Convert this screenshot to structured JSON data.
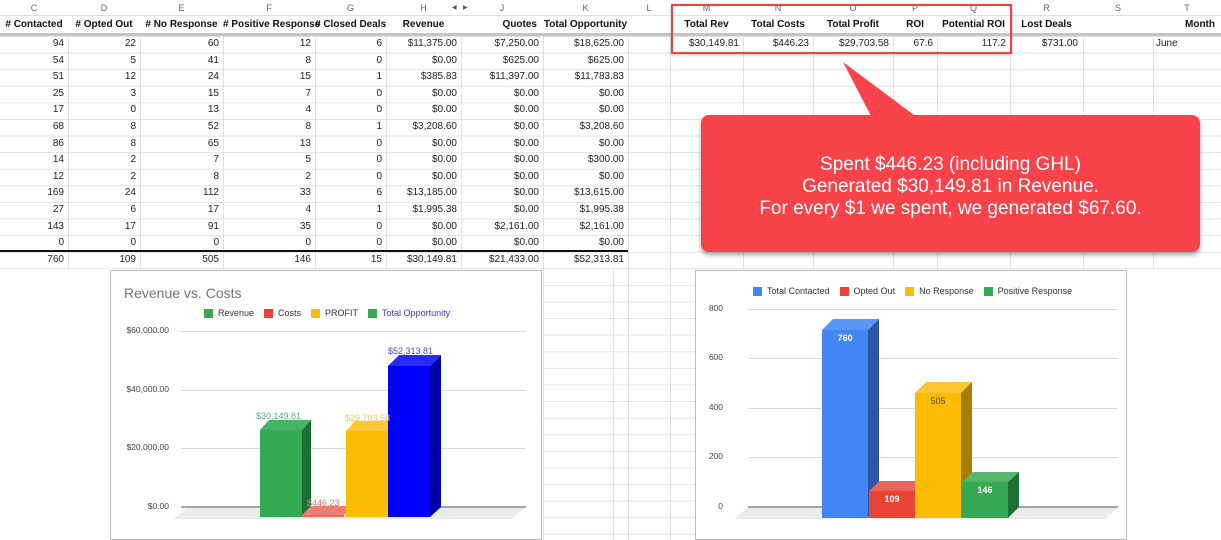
{
  "spreadsheet": {
    "column_letters": [
      "C",
      "D",
      "E",
      "F",
      "G",
      "H",
      "J",
      "K",
      "L",
      "M",
      "N",
      "O",
      "P",
      "Q",
      "R",
      "S",
      "T"
    ],
    "headers": {
      "contacted": "# Contacted",
      "opted_out": "# Opted Out",
      "no_response": "# No Response",
      "positive_response": "# Positive Response",
      "closed_deals": "# Closed Deals",
      "revenue": "Revenue",
      "quotes": "Quotes",
      "total_opportunity": "Total Opportunity",
      "total_rev": "Total Rev",
      "total_costs": "Total Costs",
      "total_profit": "Total Profit",
      "roi": "ROI",
      "potential_roi": "Potential ROI",
      "lost_deals": "Lost Deals",
      "month": "Month"
    },
    "rows": [
      [
        "94",
        "22",
        "60",
        "12",
        "6",
        "$11,375.00",
        "$7,250.00",
        "$18,625.00"
      ],
      [
        "54",
        "5",
        "41",
        "8",
        "0",
        "$0.00",
        "$625.00",
        "$625.00"
      ],
      [
        "51",
        "12",
        "24",
        "15",
        "1",
        "$385.83",
        "$11,397.00",
        "$11,783.83"
      ],
      [
        "25",
        "3",
        "15",
        "7",
        "0",
        "$0.00",
        "$0.00",
        "$0.00"
      ],
      [
        "17",
        "0",
        "13",
        "4",
        "0",
        "$0.00",
        "$0.00",
        "$0.00"
      ],
      [
        "68",
        "8",
        "52",
        "8",
        "1",
        "$3,208.60",
        "$0.00",
        "$3,208.60"
      ],
      [
        "86",
        "8",
        "65",
        "13",
        "0",
        "$0.00",
        "$0.00",
        "$0.00"
      ],
      [
        "14",
        "2",
        "7",
        "5",
        "0",
        "$0.00",
        "$0.00",
        "$300.00"
      ],
      [
        "12",
        "2",
        "8",
        "2",
        "0",
        "$0.00",
        "$0.00",
        "$0.00"
      ],
      [
        "169",
        "24",
        "112",
        "33",
        "6",
        "$13,185.00",
        "$0.00",
        "$13,615.00"
      ],
      [
        "27",
        "6",
        "17",
        "4",
        "1",
        "$1,995.38",
        "$0.00",
        "$1,995.38"
      ],
      [
        "143",
        "17",
        "91",
        "35",
        "0",
        "$0.00",
        "$2,161.00",
        "$2,161.00"
      ],
      [
        "0",
        "0",
        "0",
        "0",
        "0",
        "$0.00",
        "$0.00",
        "$0.00"
      ]
    ],
    "totals": [
      "760",
      "109",
      "505",
      "146",
      "15",
      "$30,149.81",
      "$21,433.00",
      "$52,313.81"
    ],
    "summary": {
      "total_rev": "$30,149.81",
      "total_costs": "$446.23",
      "total_profit": "$29,703.58",
      "roi": "67.6",
      "potential_roi": "117.2",
      "lost_deals": "$731.00",
      "month": "June"
    }
  },
  "callout": {
    "line1": "Spent $446.23 (including GHL)",
    "line2": "Generated $30,149.81 in Revenue.",
    "line3": "For every $1 we spent, we generated $67.60.",
    "color": "#f8434a"
  },
  "chart_data": [
    {
      "type": "bar",
      "title": "Revenue vs. Costs",
      "categories": [
        "Revenue",
        "Costs",
        "PROFIT",
        "Total Opportunity"
      ],
      "values": [
        30149.81,
        446.23,
        29703.58,
        52313.81
      ],
      "value_labels": [
        "$30,149.81",
        "$446.23",
        "$29,703.58",
        "$52,313.81"
      ],
      "colors": [
        "#34a853",
        "#ea6b5f",
        "#fbbc04",
        "#0000ff"
      ],
      "legend": [
        "Revenue",
        "Costs",
        "PROFIT",
        "Total Opportunity"
      ],
      "legend_position": "top",
      "yticks": [
        "$0.00",
        "$20,000.00",
        "$40,000.00",
        "$60,000.00"
      ],
      "ylim": [
        0,
        60000
      ],
      "grid": true,
      "xlabel": "",
      "ylabel": "",
      "style": "3d"
    },
    {
      "type": "bar",
      "title": "",
      "categories": [
        "Total Contacted",
        "Opted Out",
        "No Response",
        "Positive Response"
      ],
      "values": [
        760,
        109,
        505,
        146
      ],
      "value_labels": [
        "760",
        "109",
        "505",
        "146"
      ],
      "colors": [
        "#4285f4",
        "#ea4335",
        "#fbbc04",
        "#34a853"
      ],
      "legend": [
        "Total Contacted",
        "Opted Out",
        "No Response",
        "Positive Response"
      ],
      "legend_position": "top",
      "yticks": [
        "0",
        "200",
        "400",
        "600",
        "800"
      ],
      "ylim": [
        0,
        800
      ],
      "grid": true,
      "xlabel": "",
      "ylabel": "",
      "style": "3d"
    }
  ]
}
